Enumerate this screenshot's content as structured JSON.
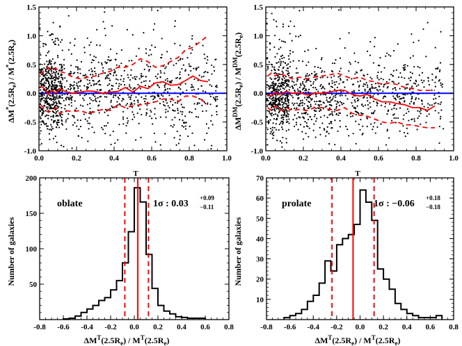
{
  "chart_data": [
    {
      "id": "tl",
      "type": "scatter",
      "ylabel": "ΔM*(2.5Re)/M*(2.5Re)",
      "xlim": [
        0,
        1
      ],
      "ylim": [
        -1,
        1.5
      ],
      "xticks": [
        "0.0",
        "0.2",
        "0.4",
        "0.6",
        "0.8",
        "1.0"
      ],
      "yticks": [
        "-1.0",
        "-0.5",
        "0.0",
        "0.5",
        "1.0",
        "1.5"
      ],
      "zero_line_color": "#0000ff",
      "median_color": "#ff0000",
      "scatter": {
        "n": 1200,
        "center": 0.05,
        "spread_near": 0.32,
        "spread_far": 0.42
      },
      "median": {
        "x": [
          0.01,
          0.03,
          0.05,
          0.07,
          0.09,
          0.11,
          0.14,
          0.18,
          0.22,
          0.26,
          0.3,
          0.34,
          0.38,
          0.42,
          0.46,
          0.5,
          0.54,
          0.58,
          0.62,
          0.66,
          0.7,
          0.74,
          0.78,
          0.82,
          0.86,
          0.9
        ],
        "y": [
          0.12,
          0.08,
          -0.02,
          0.05,
          0.0,
          0.08,
          0.03,
          0.0,
          0.02,
          0.04,
          0.03,
          0.0,
          0.02,
          0.03,
          0.1,
          0.02,
          0.12,
          0.08,
          0.18,
          0.2,
          0.14,
          0.15,
          0.22,
          0.3,
          0.22,
          0.2
        ]
      },
      "upper": {
        "x": [
          0.01,
          0.03,
          0.05,
          0.07,
          0.09,
          0.11,
          0.14,
          0.18,
          0.22,
          0.26,
          0.3,
          0.34,
          0.38,
          0.42,
          0.46,
          0.5,
          0.54,
          0.58,
          0.62,
          0.66,
          0.7,
          0.74,
          0.78,
          0.82,
          0.86,
          0.9
        ],
        "y": [
          0.32,
          0.4,
          0.45,
          0.4,
          0.43,
          0.38,
          0.35,
          0.28,
          0.25,
          0.28,
          0.3,
          0.35,
          0.38,
          0.45,
          0.45,
          0.5,
          0.6,
          0.55,
          0.45,
          0.48,
          0.55,
          0.62,
          0.75,
          0.8,
          0.9,
          1.0
        ]
      },
      "lower": {
        "x": [
          0.01,
          0.03,
          0.05,
          0.07,
          0.09,
          0.11,
          0.14,
          0.18,
          0.22,
          0.26,
          0.3,
          0.34,
          0.38,
          0.42,
          0.46,
          0.5,
          0.54,
          0.58,
          0.62,
          0.66,
          0.7,
          0.74,
          0.78,
          0.82,
          0.86,
          0.9
        ],
        "y": [
          -0.2,
          -0.28,
          -0.33,
          -0.3,
          -0.25,
          -0.35,
          -0.3,
          -0.32,
          -0.3,
          -0.35,
          -0.32,
          -0.28,
          -0.3,
          -0.2,
          -0.25,
          -0.22,
          -0.2,
          -0.18,
          -0.15,
          -0.1,
          -0.1,
          -0.15,
          -0.05,
          -0.05,
          -0.1,
          -0.2
        ]
      }
    },
    {
      "id": "tr",
      "type": "scatter",
      "ylabel": "ΔMDM(2.5Re)/MDM(2.5Re)",
      "xlim": [
        0,
        1
      ],
      "ylim": [
        -1,
        1.5
      ],
      "xticks": [
        "0.0",
        "0.2",
        "0.4",
        "0.6",
        "0.8",
        "1.0"
      ],
      "yticks": [
        "-1.0",
        "-0.5",
        "0.0",
        "0.5",
        "1.0",
        "1.5"
      ],
      "zero_line_color": "#0000ff",
      "median_color": "#ff0000",
      "scatter": {
        "n": 1200,
        "center": -0.02,
        "spread_near": 0.3,
        "spread_far": 0.35
      },
      "median": {
        "x": [
          0.01,
          0.03,
          0.05,
          0.07,
          0.09,
          0.11,
          0.14,
          0.18,
          0.22,
          0.26,
          0.3,
          0.34,
          0.38,
          0.42,
          0.46,
          0.5,
          0.54,
          0.58,
          0.62,
          0.66,
          0.7,
          0.74,
          0.78,
          0.82,
          0.86,
          0.9
        ],
        "y": [
          -0.02,
          -0.05,
          0.02,
          -0.02,
          0.0,
          0.03,
          0.0,
          0.01,
          -0.03,
          0.0,
          0.0,
          0.02,
          0.05,
          0.05,
          -0.02,
          -0.05,
          -0.02,
          -0.1,
          -0.15,
          -0.15,
          -0.18,
          -0.2,
          -0.25,
          -0.25,
          -0.3,
          -0.22
        ]
      },
      "upper": {
        "x": [
          0.01,
          0.03,
          0.05,
          0.07,
          0.09,
          0.11,
          0.14,
          0.18,
          0.22,
          0.26,
          0.3,
          0.34,
          0.38,
          0.42,
          0.46,
          0.5,
          0.54,
          0.58,
          0.62,
          0.66,
          0.7,
          0.74,
          0.78,
          0.82,
          0.86,
          0.9
        ],
        "y": [
          0.3,
          0.35,
          0.3,
          0.35,
          0.32,
          0.3,
          0.25,
          0.28,
          0.25,
          0.28,
          0.3,
          0.32,
          0.35,
          0.3,
          0.25,
          0.28,
          0.22,
          0.2,
          0.15,
          0.18,
          0.15,
          0.1,
          0.08,
          0.05,
          0.05,
          0.05
        ]
      },
      "lower": {
        "x": [
          0.01,
          0.03,
          0.05,
          0.07,
          0.09,
          0.11,
          0.14,
          0.18,
          0.22,
          0.26,
          0.3,
          0.34,
          0.38,
          0.42,
          0.46,
          0.5,
          0.54,
          0.58,
          0.62,
          0.66,
          0.7,
          0.74,
          0.78,
          0.82,
          0.86,
          0.9
        ],
        "y": [
          -0.25,
          -0.3,
          -0.22,
          -0.28,
          -0.3,
          -0.25,
          -0.3,
          -0.28,
          -0.3,
          -0.25,
          -0.25,
          -0.28,
          -0.3,
          -0.25,
          -0.35,
          -0.38,
          -0.4,
          -0.45,
          -0.5,
          -0.52,
          -0.5,
          -0.55,
          -0.55,
          -0.58,
          -0.6,
          -0.6
        ]
      }
    },
    {
      "id": "bl",
      "type": "histogram",
      "xlabel": "ΔMT(2.5Re)/MT(2.5Re)",
      "ylabel": "Number of galaxies",
      "xlim": [
        -0.8,
        0.8
      ],
      "ylim": [
        0,
        200
      ],
      "xticks": [
        "-0.8",
        "-0.6",
        "-0.4",
        "-0.2",
        "0.0",
        "0.2",
        "0.4",
        "0.6",
        "0.8"
      ],
      "yticks": [
        "50",
        "100",
        "150",
        "200"
      ],
      "top_label": "T",
      "label": "oblate",
      "sigma": {
        "prefix": "1σ : ",
        "value": "0.03",
        "plus": "+0.09",
        "minus": "−0.11"
      },
      "median": 0.03,
      "lower_1sigma": -0.08,
      "upper_1sigma": 0.12,
      "line_color": "#ff0000",
      "bin_start": -0.6,
      "bin_width": 0.05,
      "counts": [
        1,
        2,
        5,
        10,
        15,
        20,
        27,
        31,
        42,
        55,
        80,
        124,
        186,
        166,
        92,
        44,
        20,
        12,
        8,
        4,
        3,
        2,
        2,
        2
      ]
    },
    {
      "id": "br",
      "type": "histogram",
      "xlabel": "ΔMT(2.5Re)/MT(2.5Re)",
      "ylabel": "Number of galaxies",
      "xlim": [
        -0.8,
        0.8
      ],
      "ylim": [
        0,
        70
      ],
      "xticks": [
        "-0.8",
        "-0.6",
        "-0.4",
        "-0.2",
        "0.0",
        "0.2",
        "0.4",
        "0.6",
        "0.8"
      ],
      "yticks": [
        "10",
        "20",
        "30",
        "40",
        "50",
        "60",
        "70"
      ],
      "top_label": "T",
      "label": "prolate",
      "sigma": {
        "prefix": "1σ : ",
        "value": "−0.06",
        "plus": "+0.18",
        "minus": "−0.18"
      },
      "median": -0.06,
      "lower_1sigma": -0.24,
      "upper_1sigma": 0.12,
      "line_color": "#ff0000",
      "bin_start": -0.65,
      "bin_width": 0.05,
      "counts": [
        1,
        2,
        3,
        5,
        9,
        12,
        18,
        29,
        24,
        37,
        40,
        42,
        47,
        64,
        58,
        49,
        25,
        20,
        15,
        8,
        5,
        3,
        2,
        1,
        1,
        1,
        2
      ]
    }
  ]
}
